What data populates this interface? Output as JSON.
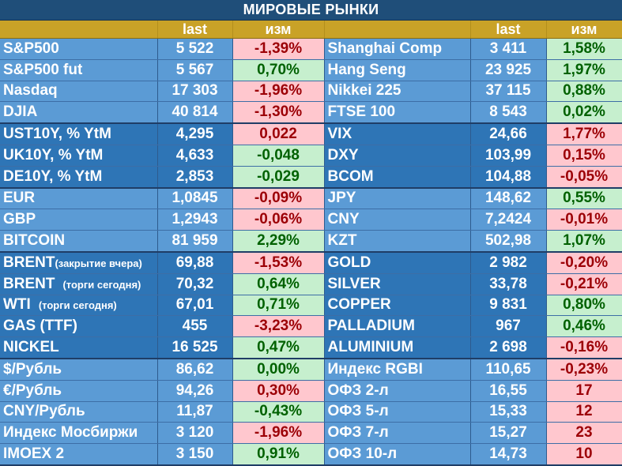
{
  "title": "МИРОВЫЕ РЫНКИ",
  "headers": {
    "name_left": "",
    "last_left": "last",
    "chg_left": "изм",
    "name_right": "",
    "last_right": "last",
    "chg_right": "изм"
  },
  "colors": {
    "up_bg": "#c6efce",
    "up_fg": "#006100",
    "down_bg": "#ffc7ce",
    "down_fg": "#9c0006",
    "header_bg": "#c9a227",
    "light_blue": "#5b9bd5",
    "dark_blue": "#2e75b6"
  },
  "groups": [
    {
      "shade": "light",
      "rows": [
        {
          "l_name": "S&P500",
          "l_last": "5 522",
          "l_chg": "-1,39%",
          "l_dir": "down",
          "r_name": "Shanghai Comp",
          "r_last": "3 411",
          "r_chg": "1,58%",
          "r_dir": "up"
        },
        {
          "l_name": "S&P500 fut",
          "l_last": "5 567",
          "l_chg": "0,70%",
          "l_dir": "up",
          "r_name": "Hang Seng",
          "r_last": "23 925",
          "r_chg": "1,97%",
          "r_dir": "up"
        },
        {
          "l_name": "Nasdaq",
          "l_last": "17 303",
          "l_chg": "-1,96%",
          "l_dir": "down",
          "r_name": "Nikkei 225",
          "r_last": "37 115",
          "r_chg": "0,88%",
          "r_dir": "up"
        },
        {
          "l_name": "DJIA",
          "l_last": "40 814",
          "l_chg": "-1,30%",
          "l_dir": "down",
          "r_name": "FTSE 100",
          "r_last": "8 543",
          "r_chg": "0,02%",
          "r_dir": "up"
        }
      ]
    },
    {
      "shade": "dark",
      "rows": [
        {
          "l_name": "UST10Y, % YtM",
          "l_last": "4,295",
          "l_chg": "0,022",
          "l_dir": "down",
          "r_name": "VIX",
          "r_last": "24,66",
          "r_chg": "1,77%",
          "r_dir": "down"
        },
        {
          "l_name": "UK10Y, % YtM",
          "l_last": "4,633",
          "l_chg": "-0,048",
          "l_dir": "up",
          "r_name": "DXY",
          "r_last": "103,99",
          "r_chg": "0,15%",
          "r_dir": "down"
        },
        {
          "l_name": "DE10Y, % YtM",
          "l_last": "2,853",
          "l_chg": "-0,029",
          "l_dir": "up",
          "r_name": "BCOM",
          "r_last": "104,88",
          "r_chg": "-0,05%",
          "r_dir": "down"
        }
      ]
    },
    {
      "shade": "light",
      "rows": [
        {
          "l_name": "EUR",
          "l_last": "1,0845",
          "l_chg": "-0,09%",
          "l_dir": "down",
          "r_name": "JPY",
          "r_last": "148,62",
          "r_chg": "0,55%",
          "r_dir": "up"
        },
        {
          "l_name": "GBP",
          "l_last": "1,2943",
          "l_chg": "-0,06%",
          "l_dir": "down",
          "r_name": "CNY",
          "r_last": "7,2424",
          "r_chg": "-0,01%",
          "r_dir": "down"
        },
        {
          "l_name": "BITCOIN",
          "l_last": "81 959",
          "l_chg": "2,29%",
          "l_dir": "up",
          "r_name": "KZT",
          "r_last": "502,98",
          "r_chg": "1,07%",
          "r_dir": "up"
        }
      ]
    },
    {
      "shade": "dark",
      "rows": [
        {
          "l_name": "BRENT",
          "l_note": "(закрытие вчера)",
          "l_last": "69,88",
          "l_chg": "-1,53%",
          "l_dir": "down",
          "r_name": "GOLD",
          "r_last": "2 982",
          "r_chg": "-0,20%",
          "r_dir": "down"
        },
        {
          "l_name": "BRENT",
          "l_note": "(торги сегодня)",
          "l_last": "70,32",
          "l_chg": "0,64%",
          "l_dir": "up",
          "r_name": "SILVER",
          "r_last": "33,78",
          "r_chg": "-0,21%",
          "r_dir": "down"
        },
        {
          "l_name": "WTI",
          "l_note": "(торги сегодня)",
          "l_last": "67,01",
          "l_chg": "0,71%",
          "l_dir": "up",
          "r_name": "COPPER",
          "r_last": "9 831",
          "r_chg": "0,80%",
          "r_dir": "up"
        },
        {
          "l_name": "GAS (TTF)",
          "l_last": "455",
          "l_chg": "-3,23%",
          "l_dir": "down",
          "r_name": "PALLADIUM",
          "r_last": "967",
          "r_chg": "0,46%",
          "r_dir": "up"
        },
        {
          "l_name": "NICKEL",
          "l_last": "16 525",
          "l_chg": "0,47%",
          "l_dir": "up",
          "r_name": "ALUMINIUM",
          "r_last": "2 698",
          "r_chg": "-0,16%",
          "r_dir": "down"
        }
      ]
    },
    {
      "shade": "light",
      "rows": [
        {
          "l_name": "$/Рубль",
          "l_last": "86,62",
          "l_chg": "0,00%",
          "l_dir": "up",
          "r_name": "Индекс RGBI",
          "r_last": "110,65",
          "r_chg": "-0,23%",
          "r_dir": "down"
        },
        {
          "l_name": "€/Рубль",
          "l_last": "94,26",
          "l_chg": "0,30%",
          "l_dir": "down",
          "r_name": "ОФЗ 2-л",
          "r_last": "16,55",
          "r_chg": "17",
          "r_dir": "down"
        },
        {
          "l_name": "CNY/Рубль",
          "l_last": "11,87",
          "l_chg": "-0,43%",
          "l_dir": "up",
          "r_name": "ОФЗ 5-л",
          "r_last": "15,33",
          "r_chg": "12",
          "r_dir": "down"
        },
        {
          "l_name": "Индекс Мосбиржи",
          "l_last": "3 120",
          "l_chg": "-1,96%",
          "l_dir": "down",
          "r_name": "ОФЗ 7-л",
          "r_last": "15,27",
          "r_chg": "23",
          "r_dir": "down"
        },
        {
          "l_name": "IMOEX 2",
          "l_last": "3 150",
          "l_chg": "0,91%",
          "l_dir": "up",
          "r_name": "ОФЗ 10-л",
          "r_last": "14,73",
          "r_chg": "10",
          "r_dir": "down"
        }
      ]
    }
  ]
}
